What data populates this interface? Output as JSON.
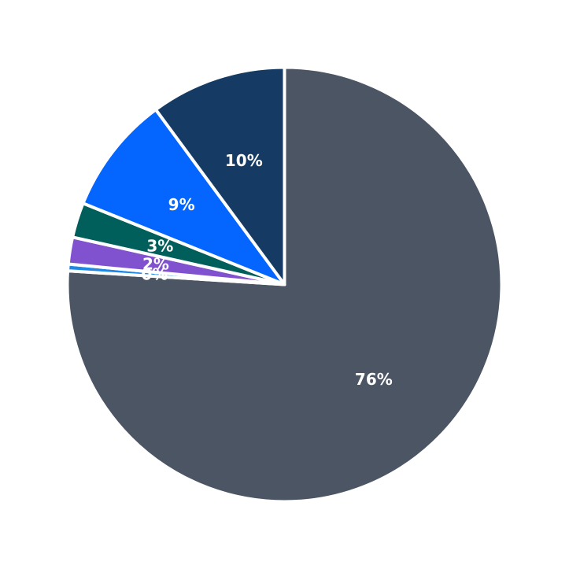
{
  "chart_data": {
    "type": "pie",
    "title": "",
    "slices": [
      {
        "label": "76%",
        "value": 76,
        "color": "#4b5563"
      },
      {
        "label": "0%",
        "value": 0.5,
        "color": "#1e88e5"
      },
      {
        "label": "2%",
        "value": 2,
        "color": "#8052d0"
      },
      {
        "label": "3%",
        "value": 2.6,
        "color": "#005f5a"
      },
      {
        "label": "9%",
        "value": 8.8,
        "color": "#0565ff"
      },
      {
        "label": "10%",
        "value": 10.1,
        "color": "#153a63"
      }
    ],
    "start_angle": "12 o'clock",
    "direction": "clockwise",
    "legend": "none"
  }
}
